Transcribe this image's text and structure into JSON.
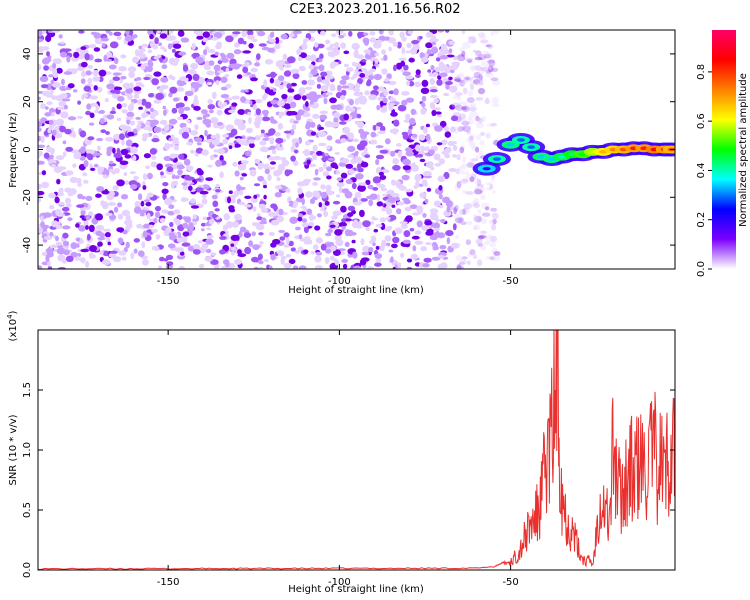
{
  "title": "C2E3.2023.201.16.56.R02",
  "chart_data": [
    {
      "type": "heatmap",
      "xlabel": "Height of straight line (km)",
      "ylabel": "Frequency (Hz)",
      "xlim": [
        -188,
        -2
      ],
      "ylim": [
        -50,
        50
      ],
      "x_ticks": [
        -150,
        -100,
        -50
      ],
      "x_tick_labels": [
        "-150",
        "-100",
        "-50"
      ],
      "y_ticks": [
        -40,
        -20,
        0,
        20,
        40
      ],
      "y_tick_labels": [
        "-40",
        "-20",
        "0",
        "20",
        "40"
      ],
      "noise_region_x": [
        -188,
        -60
      ],
      "signal_track": {
        "x": [
          -57,
          -54,
          -50,
          -47,
          -44,
          -41,
          -38,
          -35,
          -32,
          -29,
          -26,
          -23,
          -20,
          -17,
          -14,
          -11,
          -8,
          -5,
          -3
        ],
        "frequency": [
          -8,
          -4,
          2,
          4,
          1,
          -3,
          -4,
          -3,
          -2,
          -2,
          -1,
          -1,
          0,
          0,
          0.5,
          0.5,
          0,
          0,
          0
        ],
        "amplitude": [
          0.2,
          0.3,
          0.35,
          0.3,
          0.3,
          0.35,
          0.35,
          0.4,
          0.45,
          0.5,
          0.6,
          0.7,
          0.75,
          0.8,
          0.85,
          0.85,
          0.9,
          0.85,
          0.8
        ]
      },
      "colorbar": {
        "label": "Normalized spectral amplitude",
        "range": [
          0,
          0.97
        ],
        "ticks": [
          0.0,
          0.2,
          0.4,
          0.6,
          0.8
        ],
        "tick_labels": [
          "0.0",
          "0.2",
          "0.4",
          "0.6",
          "0.8"
        ],
        "colors": [
          "#ffffff",
          "#7b00ff",
          "#0000ff",
          "#00ffff",
          "#00ff00",
          "#ffff00",
          "#ff8000",
          "#ff0000",
          "#ff0066"
        ]
      }
    },
    {
      "type": "line",
      "xlabel": "Height of straight line (km)",
      "ylabel": "SNR (10 * v/v)",
      "scale_label": "(x10^4)",
      "scale_multiplier": 10000,
      "xlim": [
        -188,
        -2
      ],
      "ylim": [
        0,
        2.0
      ],
      "x_ticks": [
        -150,
        -100,
        -50
      ],
      "x_tick_labels": [
        "-150",
        "-100",
        "-50"
      ],
      "y_ticks": [
        0.0,
        0.5,
        1.0,
        1.5
      ],
      "y_tick_labels": [
        "0.0",
        "0.5",
        "1.0",
        "1.5"
      ],
      "series": [
        {
          "color": "#e8312f",
          "x": [
            -188,
            -60,
            -55,
            -52,
            -50,
            -48,
            -46,
            -44,
            -42,
            -41,
            -40,
            -39,
            -38,
            -37,
            -36.5,
            -36,
            -35.5,
            -35,
            -34,
            -33,
            -32,
            -31,
            -30,
            -29,
            -28,
            -27,
            -26,
            -25,
            -24,
            -23,
            -22,
            -21,
            -20,
            -19,
            -18,
            -17,
            -16,
            -15,
            -14,
            -13,
            -12,
            -11,
            -10,
            -9,
            -8,
            -7,
            -6,
            -5,
            -4,
            -3,
            -2
          ],
          "y": [
            0.005,
            0.01,
            0.02,
            0.06,
            0.08,
            0.15,
            0.3,
            0.45,
            0.55,
            0.7,
            0.95,
            1.15,
            1.3,
            1.7,
            1.98,
            1.55,
            1.2,
            0.8,
            0.55,
            0.45,
            0.38,
            0.3,
            0.18,
            0.12,
            0.08,
            0.1,
            0.05,
            0.35,
            0.75,
            0.65,
            0.55,
            0.5,
            1.3,
            0.85,
            0.75,
            0.82,
            0.93,
            0.98,
            0.92,
            1.0,
            1.02,
            0.95,
            1.05,
            1.1,
            1.12,
            1.03,
            1.08,
            0.93,
            1.1,
            1.33,
            1.2
          ]
        }
      ]
    }
  ]
}
